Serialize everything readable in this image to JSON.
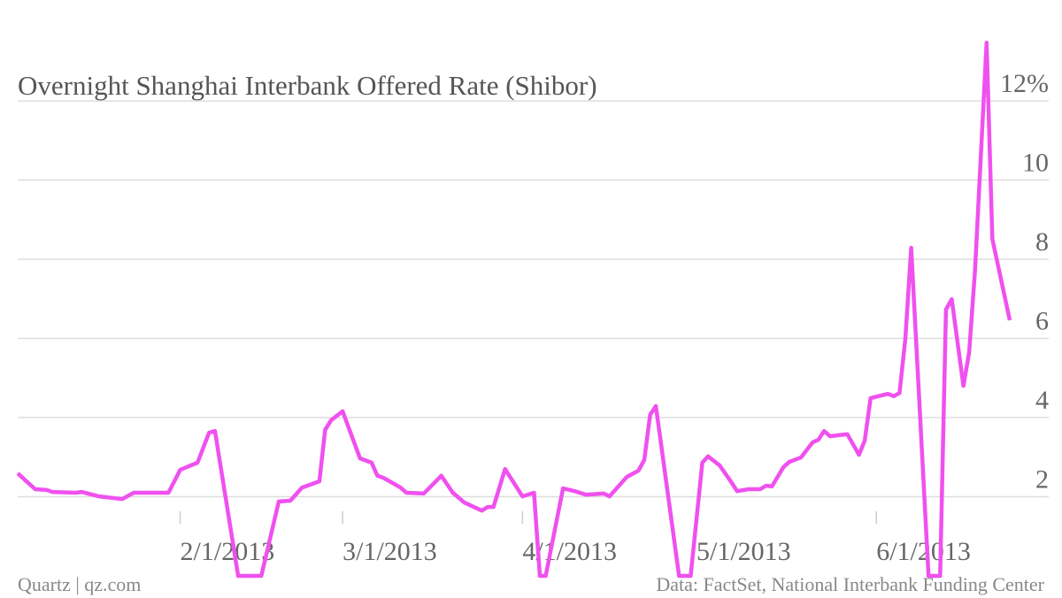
{
  "chart_data": {
    "type": "line",
    "title": "Overnight Shanghai Interbank Offered Rate (Shibor)",
    "source": "Data: FactSet, National Interbank Funding Center",
    "credit": "Quartz | qz.com",
    "x": [
      "1/4/2013",
      "1/7/2013",
      "1/9/2013",
      "1/10/2013",
      "1/14/2013",
      "1/15/2013",
      "1/18/2013",
      "1/22/2013",
      "1/24/2013",
      "1/30/2013",
      "2/1/2013",
      "2/4/2013",
      "2/6/2013",
      "2/7/2013",
      "2/11/2013",
      "2/15/2013",
      "2/18/2013",
      "2/20/2013",
      "2/22/2013",
      "2/25/2013",
      "2/26/2013",
      "2/27/2013",
      "3/1/2013",
      "3/4/2013",
      "3/6/2013",
      "3/7/2013",
      "3/8/2013",
      "3/11/2013",
      "3/12/2013",
      "3/15/2013",
      "3/18/2013",
      "3/20/2013",
      "3/22/2013",
      "3/25/2013",
      "3/26/2013",
      "3/27/2013",
      "3/29/2013",
      "4/1/2013",
      "4/3/2013",
      "4/4/2013",
      "4/5/2013",
      "4/8/2013",
      "4/10/2013",
      "4/12/2013",
      "4/15/2013",
      "4/16/2013",
      "4/19/2013",
      "4/21/2013",
      "4/22/2013",
      "4/23/2013",
      "4/24/2013",
      "4/28/2013",
      "4/30/2013",
      "5/2/2013",
      "5/3/2013",
      "5/5/2013",
      "5/7/2013",
      "5/8/2013",
      "5/10/2013",
      "5/12/2013",
      "5/13/2013",
      "5/14/2013",
      "5/16/2013",
      "5/17/2013",
      "5/19/2013",
      "5/21/2013",
      "5/22/2013",
      "5/23/2013",
      "5/24/2013",
      "5/27/2013",
      "5/29/2013",
      "5/30/2013",
      "5/31/2013",
      "6/3/2013",
      "6/4/2013",
      "6/5/2013",
      "6/6/2013",
      "6/7/2013",
      "6/10/2013",
      "6/12/2013",
      "6/13/2013",
      "6/14/2013",
      "6/16/2013",
      "6/17/2013",
      "6/18/2013",
      "6/20/2013",
      "6/21/2013",
      "6/24/2013"
    ],
    "series": [
      {
        "name": "Shibor",
        "color": "#f050ef",
        "values": [
          2.59,
          2.19,
          2.17,
          2.12,
          2.1,
          2.12,
          2.01,
          1.94,
          2.1,
          2.1,
          2.68,
          2.86,
          3.62,
          3.66,
          0,
          0,
          1.88,
          1.9,
          2.23,
          2.39,
          3.69,
          3.93,
          4.16,
          2.97,
          2.86,
          2.53,
          2.48,
          2.23,
          2.1,
          2.08,
          2.53,
          2.1,
          1.85,
          1.65,
          1.74,
          1.74,
          2.7,
          2.01,
          2.1,
          0,
          0,
          2.21,
          2.14,
          2.05,
          2.08,
          2.01,
          2.5,
          2.66,
          2.93,
          4.07,
          4.29,
          0,
          0,
          2.86,
          3.02,
          2.79,
          2.37,
          2.14,
          2.19,
          2.19,
          2.28,
          2.26,
          2.75,
          2.88,
          2.99,
          3.37,
          3.44,
          3.66,
          3.53,
          3.58,
          3.06,
          3.42,
          4.49,
          4.6,
          4.54,
          4.62,
          5.99,
          8.29,
          0,
          0,
          6.73,
          6.99,
          4.8,
          5.65,
          7.71,
          13.47,
          8.51,
          6.46
        ]
      }
    ],
    "xlim": [
      "1/4/2013",
      "6/24/2013"
    ],
    "xticks": [
      "2/1/2013",
      "3/1/2013",
      "4/1/2013",
      "5/1/2013",
      "6/1/2013"
    ],
    "ylim": [
      0,
      13.7
    ],
    "yticks": [
      2,
      4,
      6,
      8,
      10,
      {
        "value": 12,
        "label": "12%"
      }
    ],
    "grid": true
  }
}
